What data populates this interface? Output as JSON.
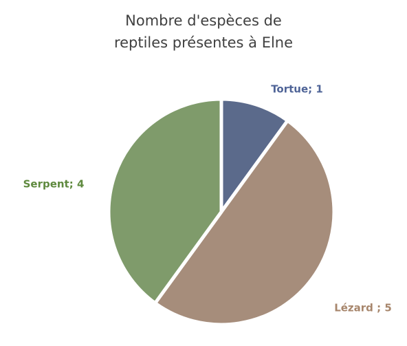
{
  "chart_data": {
    "type": "pie",
    "title": "Nombre d'espèces de reptiles présentes à Elne",
    "values": [
      1,
      5,
      4
    ],
    "value_labels": [
      "Tortue; 1",
      "Lézard ; 5",
      "Serpent; 4"
    ],
    "colors": [
      "#5b6a8b",
      "#a68d7b",
      "#7f9b6b"
    ],
    "label_colors": [
      "#4f6497",
      "#a7866c",
      "#5f8a3f"
    ]
  }
}
